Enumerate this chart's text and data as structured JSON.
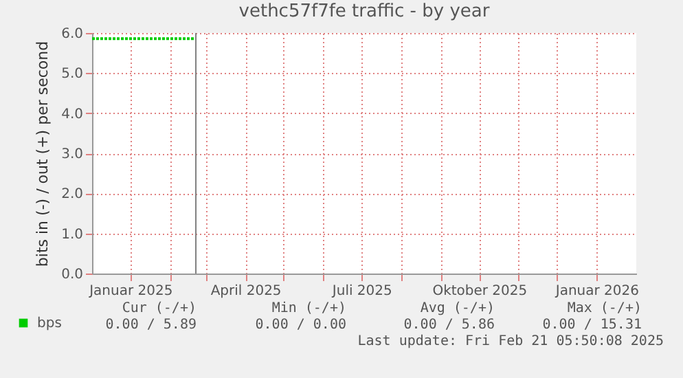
{
  "chart_data": {
    "type": "line",
    "title": "vethc57f7fe traffic - by year",
    "ylabel": "bits in (-) / out (+) per second",
    "x": [
      "2024-12-02",
      "2024-12-15",
      "2025-01-01",
      "2025-01-15",
      "2025-02-01",
      "2025-02-10",
      "2025-02-21"
    ],
    "series": [
      {
        "name": "bps",
        "color": "#00cc00",
        "values": [
          5.86,
          5.86,
          5.86,
          5.86,
          5.86,
          5.86,
          5.86
        ]
      }
    ],
    "xlim": [
      "2024-12-02",
      "2026-02-01"
    ],
    "xticks": [
      {
        "value": "2025-01-01",
        "label": "Januar 2025"
      },
      {
        "value": "2025-02-01",
        "label": null
      },
      {
        "value": "2025-03-01",
        "label": null
      },
      {
        "value": "2025-04-01",
        "label": "April 2025"
      },
      {
        "value": "2025-05-01",
        "label": null
      },
      {
        "value": "2025-06-01",
        "label": null
      },
      {
        "value": "2025-07-01",
        "label": "Juli 2025"
      },
      {
        "value": "2025-08-01",
        "label": null
      },
      {
        "value": "2025-09-01",
        "label": null
      },
      {
        "value": "2025-10-01",
        "label": "Oktober 2025"
      },
      {
        "value": "2025-11-01",
        "label": null
      },
      {
        "value": "2025-12-01",
        "label": null
      },
      {
        "value": "2026-01-01",
        "label": "Januar 2026"
      }
    ],
    "ylim": [
      0,
      6
    ],
    "yticks": [
      {
        "value": 0,
        "label": "0.0"
      },
      {
        "value": 1,
        "label": "1.0"
      },
      {
        "value": 2,
        "label": "2.0"
      },
      {
        "value": 3,
        "label": "3.0"
      },
      {
        "value": 4,
        "label": "4.0"
      },
      {
        "value": 5,
        "label": "5.0"
      },
      {
        "value": 6,
        "label": "6.0"
      }
    ],
    "ref_lines": [
      {
        "axis": "x",
        "value": "2025-02-21T05:50",
        "color": "#808080"
      }
    ],
    "grid": true,
    "legend": "bottom",
    "line_style": "dashed",
    "annotations": [
      "Cur (-/+)",
      "Min (-/+)",
      "Avg (-/+)",
      "Max (-/+)",
      "0.00 /   5.89",
      "0.00 /   0.00",
      "0.00 /   5.86",
      "0.00 / 15.31",
      "Last update: Fri Feb 21 05:50:08 2025"
    ]
  }
}
